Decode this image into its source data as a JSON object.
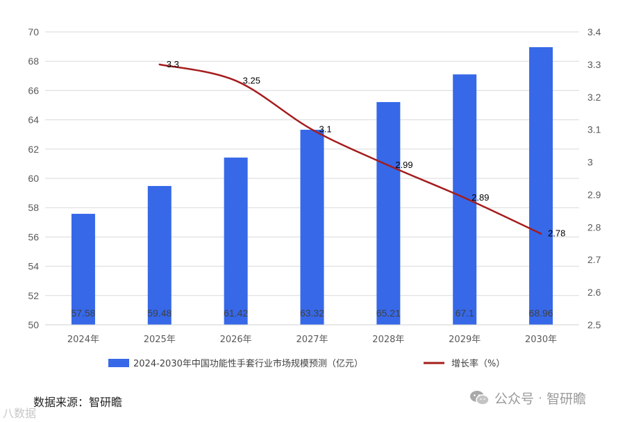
{
  "chart_data": {
    "type": "bar+line",
    "categories": [
      "2024年",
      "2025年",
      "2026年",
      "2027年",
      "2028年",
      "2029年",
      "2030年"
    ],
    "series": [
      {
        "name": "2024-2030年中国功能性手套行业市场规模预测（亿元）",
        "type": "bar",
        "axis": "left",
        "color": "#3668E8",
        "values": [
          57.58,
          59.48,
          61.42,
          63.32,
          65.21,
          67.1,
          68.96
        ],
        "labels": [
          "57.58",
          "59.48",
          "61.42",
          "63.32",
          "65.21",
          "67.1",
          "68.96"
        ]
      },
      {
        "name": "增长率（%）",
        "type": "line",
        "axis": "right",
        "color": "#A51C1C",
        "values": [
          null,
          3.3,
          3.25,
          3.1,
          2.99,
          2.89,
          2.78
        ],
        "labels": [
          "",
          "3.3",
          "3.25",
          "3.1",
          "2.99",
          "2.89",
          "2.78"
        ]
      }
    ],
    "y_left": {
      "min": 50,
      "max": 70,
      "step": 2,
      "ticks": [
        "50",
        "52",
        "54",
        "56",
        "58",
        "60",
        "62",
        "64",
        "66",
        "68",
        "70"
      ]
    },
    "y_right": {
      "min": 2.5,
      "max": 3.4,
      "step": 0.1,
      "ticks": [
        "2.5",
        "2.6",
        "2.7",
        "2.8",
        "2.9",
        "3",
        "3.1",
        "3.2",
        "3.3",
        "3.4"
      ]
    },
    "grid": true,
    "legend_position": "bottom"
  },
  "source_text": "数据来源：智研瞻",
  "watermark": {
    "platform": "公众号",
    "separator": "·",
    "account": "智研瞻",
    "icon": "wechat-icon"
  },
  "corner_mark": "八数据"
}
